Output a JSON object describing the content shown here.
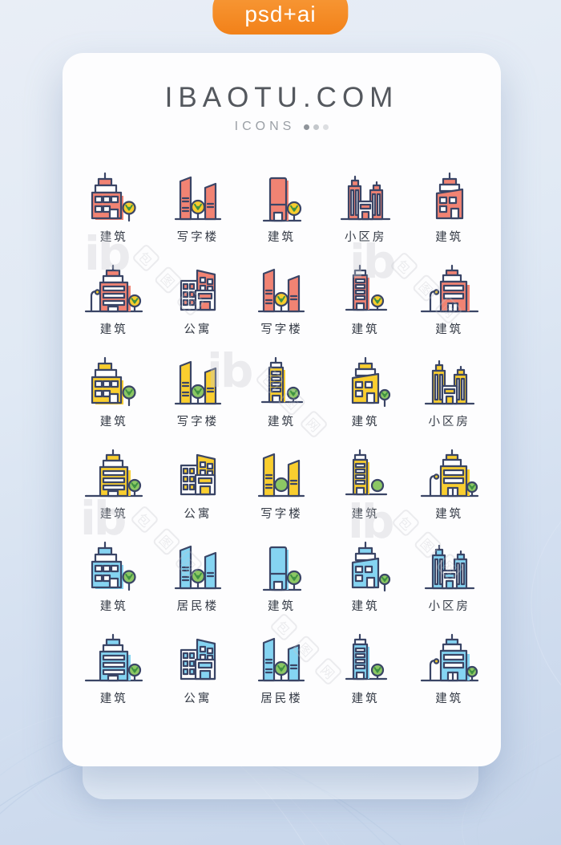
{
  "badge": {
    "label": "psd+ai",
    "color_start": "#f89b3a",
    "color_end": "#f28119"
  },
  "header": {
    "title": "IBAOTU.COM",
    "subtitle": "ICONS",
    "dot_count": 3
  },
  "watermark": {
    "logo": "ib",
    "chars": [
      "包",
      "图",
      "网"
    ]
  },
  "palettes": {
    "coral": {
      "fill": "#F18373",
      "outline": "#3A4566",
      "tree": "#F7CD2D",
      "vein": "#3E9142",
      "lamp": "#F7CD2D"
    },
    "yellow": {
      "fill": "#F9CE2F",
      "outline": "#3A4566",
      "tree": "#8CC764",
      "vein": "#3E9142",
      "lamp": "#F7CD2D"
    },
    "blue": {
      "fill": "#85D4F2",
      "outline": "#3A4566",
      "tree": "#8CC764",
      "vein": "#3E9142",
      "lamp": "#F7CD2D"
    }
  },
  "grid": {
    "rows": [
      {
        "palette": "coral",
        "cells": [
          {
            "icon": "building-tiered",
            "label": "建筑",
            "tree": "round"
          },
          {
            "icon": "office-twin-towers",
            "label": "写字楼",
            "tree": "round"
          },
          {
            "icon": "tower-slab",
            "label": "建筑",
            "tree": "round"
          },
          {
            "icon": "residential-complex",
            "label": "小区房"
          },
          {
            "icon": "building-skew-top",
            "label": "建筑"
          }
        ]
      },
      {
        "palette": "coral",
        "cells": [
          {
            "icon": "street-building",
            "label": "建筑",
            "lamp": true,
            "tree": "round"
          },
          {
            "icon": "apartment-block",
            "label": "公寓"
          },
          {
            "icon": "office-twin-towers",
            "label": "写字楼",
            "tree": "round"
          },
          {
            "icon": "small-tower",
            "label": "建筑",
            "tree": "round"
          },
          {
            "icon": "lamp-building",
            "label": "建筑",
            "lamp": true
          }
        ]
      },
      {
        "palette": "yellow",
        "cells": [
          {
            "icon": "building-tiered",
            "label": "建筑",
            "tree": "round"
          },
          {
            "icon": "office-twin-towers",
            "label": "写字楼",
            "tree": "round"
          },
          {
            "icon": "small-tower",
            "label": "建筑",
            "tree": "round"
          },
          {
            "icon": "building-skew-top",
            "label": "建筑",
            "tree": "round"
          },
          {
            "icon": "residential-complex",
            "label": "小区房"
          }
        ]
      },
      {
        "palette": "yellow",
        "cells": [
          {
            "icon": "street-building",
            "label": "建筑",
            "tree": "round"
          },
          {
            "icon": "apartment-block",
            "label": "公寓"
          },
          {
            "icon": "office-twin-towers",
            "label": "写字楼",
            "tree": "circle"
          },
          {
            "icon": "small-tower",
            "label": "建筑",
            "tree": "circle"
          },
          {
            "icon": "lamp-building",
            "label": "建筑",
            "lamp": true,
            "tree": "round"
          }
        ]
      },
      {
        "palette": "blue",
        "cells": [
          {
            "icon": "building-tiered",
            "label": "建筑",
            "tree": "round"
          },
          {
            "icon": "office-twin-towers",
            "label": "居民楼",
            "tree": "round"
          },
          {
            "icon": "tower-slab",
            "label": "建筑",
            "tree": "round"
          },
          {
            "icon": "building-skew-top",
            "label": "建筑",
            "tree": "round"
          },
          {
            "icon": "residential-complex",
            "label": "小区房"
          }
        ]
      },
      {
        "palette": "blue",
        "cells": [
          {
            "icon": "street-building",
            "label": "建筑",
            "tree": "round"
          },
          {
            "icon": "apartment-block",
            "label": "公寓"
          },
          {
            "icon": "office-twin-towers",
            "label": "居民楼",
            "tree": "round"
          },
          {
            "icon": "small-tower",
            "label": "建筑",
            "tree": "round"
          },
          {
            "icon": "lamp-building",
            "label": "建筑",
            "lamp": true,
            "tree": "round"
          }
        ]
      }
    ]
  }
}
